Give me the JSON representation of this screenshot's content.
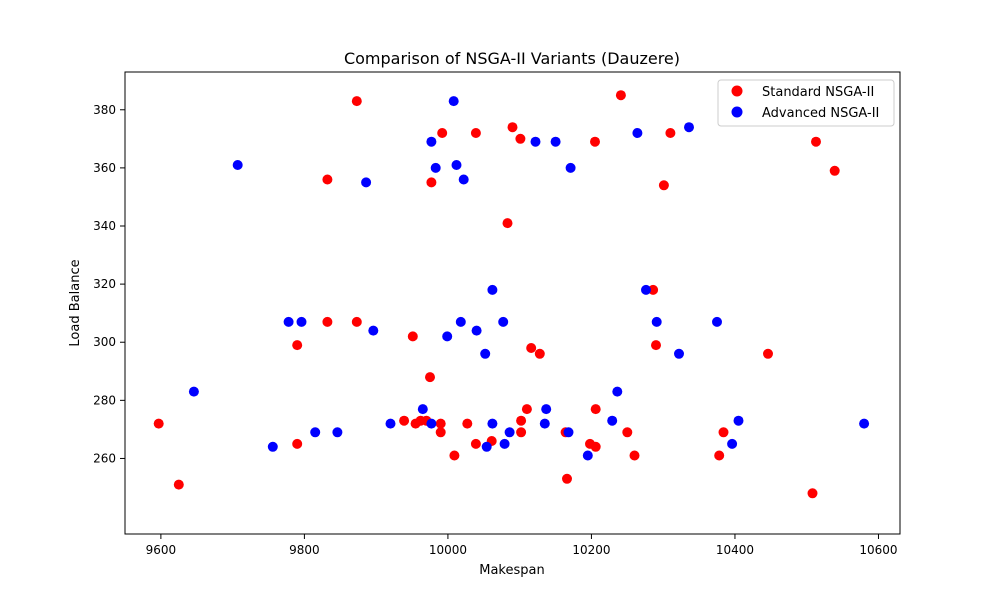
{
  "chart_data": {
    "type": "scatter",
    "title": "Comparison of NSGA-II Variants (Dauzere)",
    "xlabel": "Makespan",
    "ylabel": "Load Balance",
    "xlim": [
      9550,
      10630
    ],
    "ylim": [
      234,
      393
    ],
    "xticks": [
      9600,
      9800,
      10000,
      10200,
      10400,
      10600
    ],
    "yticks": [
      260,
      280,
      300,
      320,
      340,
      360,
      380
    ],
    "grid": false,
    "legend_position": "top-right",
    "series": [
      {
        "name": "Standard NSGA-II",
        "color": "#ff0000",
        "points": [
          [
            9597,
            272
          ],
          [
            9625,
            251
          ],
          [
            9790,
            299
          ],
          [
            9790,
            265
          ],
          [
            9832,
            356
          ],
          [
            9832,
            307
          ],
          [
            9873,
            383
          ],
          [
            9873,
            307
          ],
          [
            9939,
            273
          ],
          [
            9951,
            302
          ],
          [
            9955,
            272
          ],
          [
            9962,
            273
          ],
          [
            9970,
            273
          ],
          [
            9975,
            288
          ],
          [
            9977,
            355
          ],
          [
            9990,
            272
          ],
          [
            9990,
            269
          ],
          [
            9992,
            372
          ],
          [
            10009,
            261
          ],
          [
            10027,
            272
          ],
          [
            10039,
            372
          ],
          [
            10039,
            265
          ],
          [
            10061,
            266
          ],
          [
            10083,
            341
          ],
          [
            10090,
            374
          ],
          [
            10101,
            370
          ],
          [
            10102,
            273
          ],
          [
            10102,
            269
          ],
          [
            10110,
            277
          ],
          [
            10116,
            298
          ],
          [
            10128,
            296
          ],
          [
            10164,
            269
          ],
          [
            10166,
            253
          ],
          [
            10198,
            265
          ],
          [
            10205,
            369
          ],
          [
            10206,
            277
          ],
          [
            10206,
            264
          ],
          [
            10241,
            385
          ],
          [
            10250,
            269
          ],
          [
            10260,
            261
          ],
          [
            10286,
            318
          ],
          [
            10290,
            299
          ],
          [
            10301,
            354
          ],
          [
            10310,
            372
          ],
          [
            10378,
            261
          ],
          [
            10384,
            269
          ],
          [
            10446,
            296
          ],
          [
            10508,
            248
          ],
          [
            10513,
            369
          ],
          [
            10539,
            359
          ]
        ]
      },
      {
        "name": "Advanced NSGA-II",
        "color": "#0000ff",
        "points": [
          [
            9646,
            283
          ],
          [
            9707,
            361
          ],
          [
            9756,
            264
          ],
          [
            9778,
            307
          ],
          [
            9796,
            307
          ],
          [
            9815,
            269
          ],
          [
            9846,
            269
          ],
          [
            9886,
            355
          ],
          [
            9896,
            304
          ],
          [
            9920,
            272
          ],
          [
            9965,
            277
          ],
          [
            9977,
            369
          ],
          [
            9977,
            272
          ],
          [
            9983,
            360
          ],
          [
            9999,
            302
          ],
          [
            10008,
            383
          ],
          [
            10012,
            361
          ],
          [
            10018,
            307
          ],
          [
            10022,
            356
          ],
          [
            10040,
            304
          ],
          [
            10052,
            296
          ],
          [
            10054,
            264
          ],
          [
            10062,
            318
          ],
          [
            10062,
            272
          ],
          [
            10077,
            307
          ],
          [
            10079,
            265
          ],
          [
            10086,
            269
          ],
          [
            10122,
            369
          ],
          [
            10135,
            272
          ],
          [
            10137,
            277
          ],
          [
            10150,
            369
          ],
          [
            10168,
            269
          ],
          [
            10171,
            360
          ],
          [
            10195,
            261
          ],
          [
            10229,
            273
          ],
          [
            10236,
            283
          ],
          [
            10264,
            372
          ],
          [
            10276,
            318
          ],
          [
            10291,
            307
          ],
          [
            10322,
            296
          ],
          [
            10336,
            374
          ],
          [
            10375,
            307
          ],
          [
            10396,
            265
          ],
          [
            10405,
            273
          ],
          [
            10580,
            272
          ]
        ]
      }
    ]
  }
}
